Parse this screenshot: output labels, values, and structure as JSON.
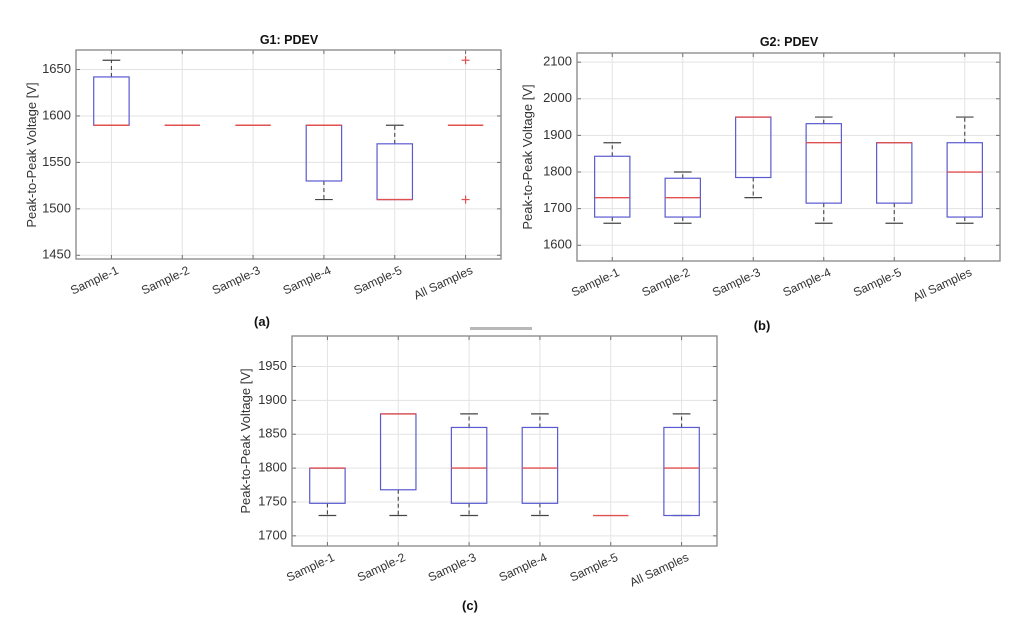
{
  "chart_data": [
    {
      "id": "a",
      "type": "box",
      "title": "G1: PDEV",
      "caption": "(a)",
      "xlabel": "",
      "ylabel": "Peak-to-Peak Voltage [V]",
      "ylim": [
        1446,
        1671
      ],
      "yticks": [
        1450,
        1500,
        1550,
        1600,
        1650
      ],
      "grid": true,
      "categories": [
        "Sample-1",
        "Sample-2",
        "Sample-3",
        "Sample-4",
        "Sample-5",
        "All Samples"
      ],
      "boxes": [
        {
          "min": 1590,
          "q1": 1590,
          "median": 1590,
          "q3": 1642,
          "max": 1660,
          "outliers": []
        },
        {
          "min": 1590,
          "q1": 1590,
          "median": 1590,
          "q3": 1590,
          "max": 1590,
          "outliers": []
        },
        {
          "min": 1590,
          "q1": 1590,
          "median": 1590,
          "q3": 1590,
          "max": 1590,
          "outliers": []
        },
        {
          "min": 1510,
          "q1": 1530,
          "median": 1590,
          "q3": 1590,
          "max": 1590,
          "outliers": []
        },
        {
          "min": 1510,
          "q1": 1510,
          "median": 1510,
          "q3": 1570,
          "max": 1590,
          "outliers": []
        },
        {
          "min": 1590,
          "q1": 1590,
          "median": 1590,
          "q3": 1590,
          "max": 1590,
          "outliers": [
            1660,
            1510
          ]
        }
      ]
    },
    {
      "id": "b",
      "type": "box",
      "title": "G2: PDEV",
      "caption": "(b)",
      "xlabel": "",
      "ylabel": "Peak-to-Peak Voltage [V]",
      "ylim": [
        1557,
        2125
      ],
      "yticks": [
        1600,
        1700,
        1800,
        1900,
        2000,
        2100
      ],
      "grid": true,
      "categories": [
        "Sample-1",
        "Sample-2",
        "Sample-3",
        "Sample-4",
        "Sample-5",
        "All Samples"
      ],
      "boxes": [
        {
          "min": 1660,
          "q1": 1677,
          "median": 1730,
          "q3": 1843,
          "max": 1880,
          "outliers": []
        },
        {
          "min": 1660,
          "q1": 1677,
          "median": 1730,
          "q3": 1783,
          "max": 1800,
          "outliers": []
        },
        {
          "min": 1730,
          "q1": 1785,
          "median": 1950,
          "q3": 1950,
          "max": 1950,
          "outliers": []
        },
        {
          "min": 1660,
          "q1": 1715,
          "median": 1880,
          "q3": 1932,
          "max": 1950,
          "outliers": []
        },
        {
          "min": 1660,
          "q1": 1715,
          "median": 1880,
          "q3": 1880,
          "max": 1880,
          "outliers": []
        },
        {
          "min": 1660,
          "q1": 1677,
          "median": 1800,
          "q3": 1880,
          "max": 1950,
          "outliers": []
        }
      ]
    },
    {
      "id": "c",
      "type": "box",
      "title": "",
      "caption": "(c)",
      "xlabel": "",
      "ylabel": "Peak-to-Peak Voltage [V]",
      "ylim": [
        1685,
        1995
      ],
      "yticks": [
        1700,
        1750,
        1800,
        1850,
        1900,
        1950
      ],
      "grid": true,
      "categories": [
        "Sample-1",
        "Sample-2",
        "Sample-3",
        "Sample-4",
        "Sample-5",
        "All Samples"
      ],
      "boxes": [
        {
          "min": 1730,
          "q1": 1748,
          "median": 1800,
          "q3": 1800,
          "max": 1800,
          "outliers": []
        },
        {
          "min": 1730,
          "q1": 1768,
          "median": 1880,
          "q3": 1880,
          "max": 1880,
          "outliers": []
        },
        {
          "min": 1730,
          "q1": 1748,
          "median": 1800,
          "q3": 1860,
          "max": 1880,
          "outliers": []
        },
        {
          "min": 1730,
          "q1": 1748,
          "median": 1800,
          "q3": 1860,
          "max": 1880,
          "outliers": []
        },
        {
          "min": 1730,
          "q1": 1730,
          "median": 1730,
          "q3": 1730,
          "max": 1730,
          "outliers": []
        },
        {
          "min": 1730,
          "q1": 1730,
          "median": 1800,
          "q3": 1860,
          "max": 1880,
          "outliers": []
        }
      ]
    }
  ]
}
